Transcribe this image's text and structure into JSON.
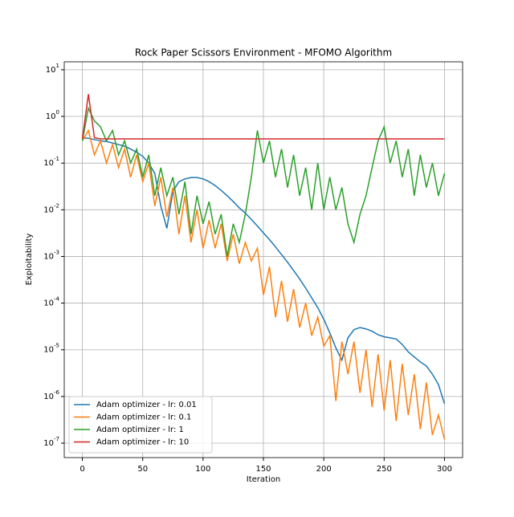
{
  "chart_data": {
    "type": "line",
    "title": "Rock Paper Scissors Environment - MFOMO Algorithm",
    "x_label": "Iteration",
    "y_label": "Exploitability",
    "log_y": true,
    "grid": true,
    "legend_position": "lower left",
    "x": [
      0,
      5,
      10,
      15,
      20,
      25,
      30,
      35,
      40,
      45,
      50,
      55,
      60,
      65,
      70,
      75,
      80,
      85,
      90,
      95,
      100,
      105,
      110,
      115,
      120,
      125,
      130,
      135,
      140,
      145,
      150,
      155,
      160,
      165,
      170,
      175,
      180,
      185,
      190,
      195,
      200,
      205,
      210,
      215,
      220,
      225,
      230,
      235,
      240,
      245,
      250,
      255,
      260,
      265,
      270,
      275,
      280,
      285,
      290,
      295,
      300
    ],
    "xlim": [
      -15,
      315
    ],
    "xticks": [
      0,
      50,
      100,
      150,
      200,
      250,
      300
    ],
    "ylim": [
      4.9e-08,
      14.8
    ],
    "yticks": [
      {
        "value": 1e-07,
        "label": "10^-7"
      },
      {
        "value": 1e-06,
        "label": "10^-6"
      },
      {
        "value": 1e-05,
        "label": "10^-5"
      },
      {
        "value": 0.0001,
        "label": "10^-4"
      },
      {
        "value": 0.001,
        "label": "10^-3"
      },
      {
        "value": 0.01,
        "label": "10^-2"
      },
      {
        "value": 0.1,
        "label": "10^-1"
      },
      {
        "value": 1,
        "label": "10^0"
      },
      {
        "value": 10,
        "label": "10^1"
      }
    ],
    "series": [
      {
        "name": "Adam optimizer - lr: 0.01",
        "color": "#1f77b4",
        "values": [
          0.35,
          0.34,
          0.32,
          0.3,
          0.29,
          0.27,
          0.25,
          0.23,
          0.2,
          0.17,
          0.14,
          0.1,
          0.06,
          0.012,
          0.004,
          0.025,
          0.04,
          0.046,
          0.049,
          0.049,
          0.046,
          0.04,
          0.033,
          0.026,
          0.02,
          0.015,
          0.011,
          0.0085,
          0.0062,
          0.0045,
          0.0032,
          0.0023,
          0.0016,
          0.0011,
          0.00075,
          0.0005,
          0.00033,
          0.00021,
          0.00013,
          8e-05,
          4.5e-05,
          2.3e-05,
          1.1e-05,
          6e-06,
          1.8e-05,
          2.7e-05,
          3e-05,
          2.8e-05,
          2.5e-05,
          2.1e-05,
          1.9e-05,
          1.8e-05,
          1.7e-05,
          1.3e-05,
          9e-06,
          7e-06,
          5.5e-06,
          4.5e-06,
          3e-06,
          1.8e-06,
          7e-07
        ]
      },
      {
        "name": "Adam optimizer - lr: 0.1",
        "color": "#ff7f0e",
        "values": [
          0.3,
          0.5,
          0.15,
          0.3,
          0.1,
          0.25,
          0.08,
          0.2,
          0.05,
          0.15,
          0.04,
          0.1,
          0.012,
          0.05,
          0.007,
          0.03,
          0.003,
          0.02,
          0.002,
          0.01,
          0.0015,
          0.006,
          0.0015,
          0.005,
          0.0008,
          0.003,
          0.0007,
          0.002,
          0.0008,
          0.0015,
          0.00015,
          0.0006,
          5e-05,
          0.0003,
          4e-05,
          0.0002,
          3e-05,
          0.0001,
          2e-05,
          5e-05,
          1.2e-05,
          2e-05,
          8e-07,
          1.5e-05,
          3e-06,
          1.5e-05,
          1.2e-06,
          1e-05,
          6e-07,
          8e-06,
          5e-07,
          6e-06,
          3e-07,
          5e-06,
          4e-07,
          3e-06,
          2e-07,
          2e-06,
          1.5e-07,
          4e-07,
          1.2e-07
        ]
      },
      {
        "name": "Adam optimizer - lr: 1",
        "color": "#2ca02c",
        "values": [
          0.3,
          1.5,
          0.8,
          0.6,
          0.3,
          0.5,
          0.15,
          0.3,
          0.1,
          0.2,
          0.05,
          0.15,
          0.02,
          0.08,
          0.02,
          0.05,
          0.008,
          0.04,
          0.003,
          0.02,
          0.005,
          0.015,
          0.003,
          0.008,
          0.001,
          0.005,
          0.002,
          0.008,
          0.05,
          0.5,
          0.1,
          0.3,
          0.05,
          0.2,
          0.03,
          0.15,
          0.02,
          0.08,
          0.01,
          0.1,
          0.01,
          0.05,
          0.01,
          0.03,
          0.005,
          0.002,
          0.008,
          0.02,
          0.08,
          0.3,
          0.6,
          0.1,
          0.3,
          0.05,
          0.2,
          0.02,
          0.15,
          0.03,
          0.1,
          0.02,
          0.06
        ]
      },
      {
        "name": "Adam optimizer - lr: 10",
        "color": "#d62728",
        "values": [
          0.33,
          3,
          0.35,
          0.33,
          0.33,
          0.33,
          0.33,
          0.33,
          0.33,
          0.33,
          0.33,
          0.33,
          0.33,
          0.33,
          0.33,
          0.33,
          0.33,
          0.33,
          0.33,
          0.33,
          0.33,
          0.33,
          0.33,
          0.33,
          0.33,
          0.33,
          0.33,
          0.33,
          0.33,
          0.33,
          0.33,
          0.33,
          0.33,
          0.33,
          0.33,
          0.33,
          0.33,
          0.33,
          0.33,
          0.33,
          0.33,
          0.33,
          0.33,
          0.33,
          0.33,
          0.33,
          0.33,
          0.33,
          0.33,
          0.33,
          0.33,
          0.33,
          0.33,
          0.33,
          0.33,
          0.33,
          0.33,
          0.33,
          0.33,
          0.33,
          0.33
        ]
      }
    ]
  }
}
